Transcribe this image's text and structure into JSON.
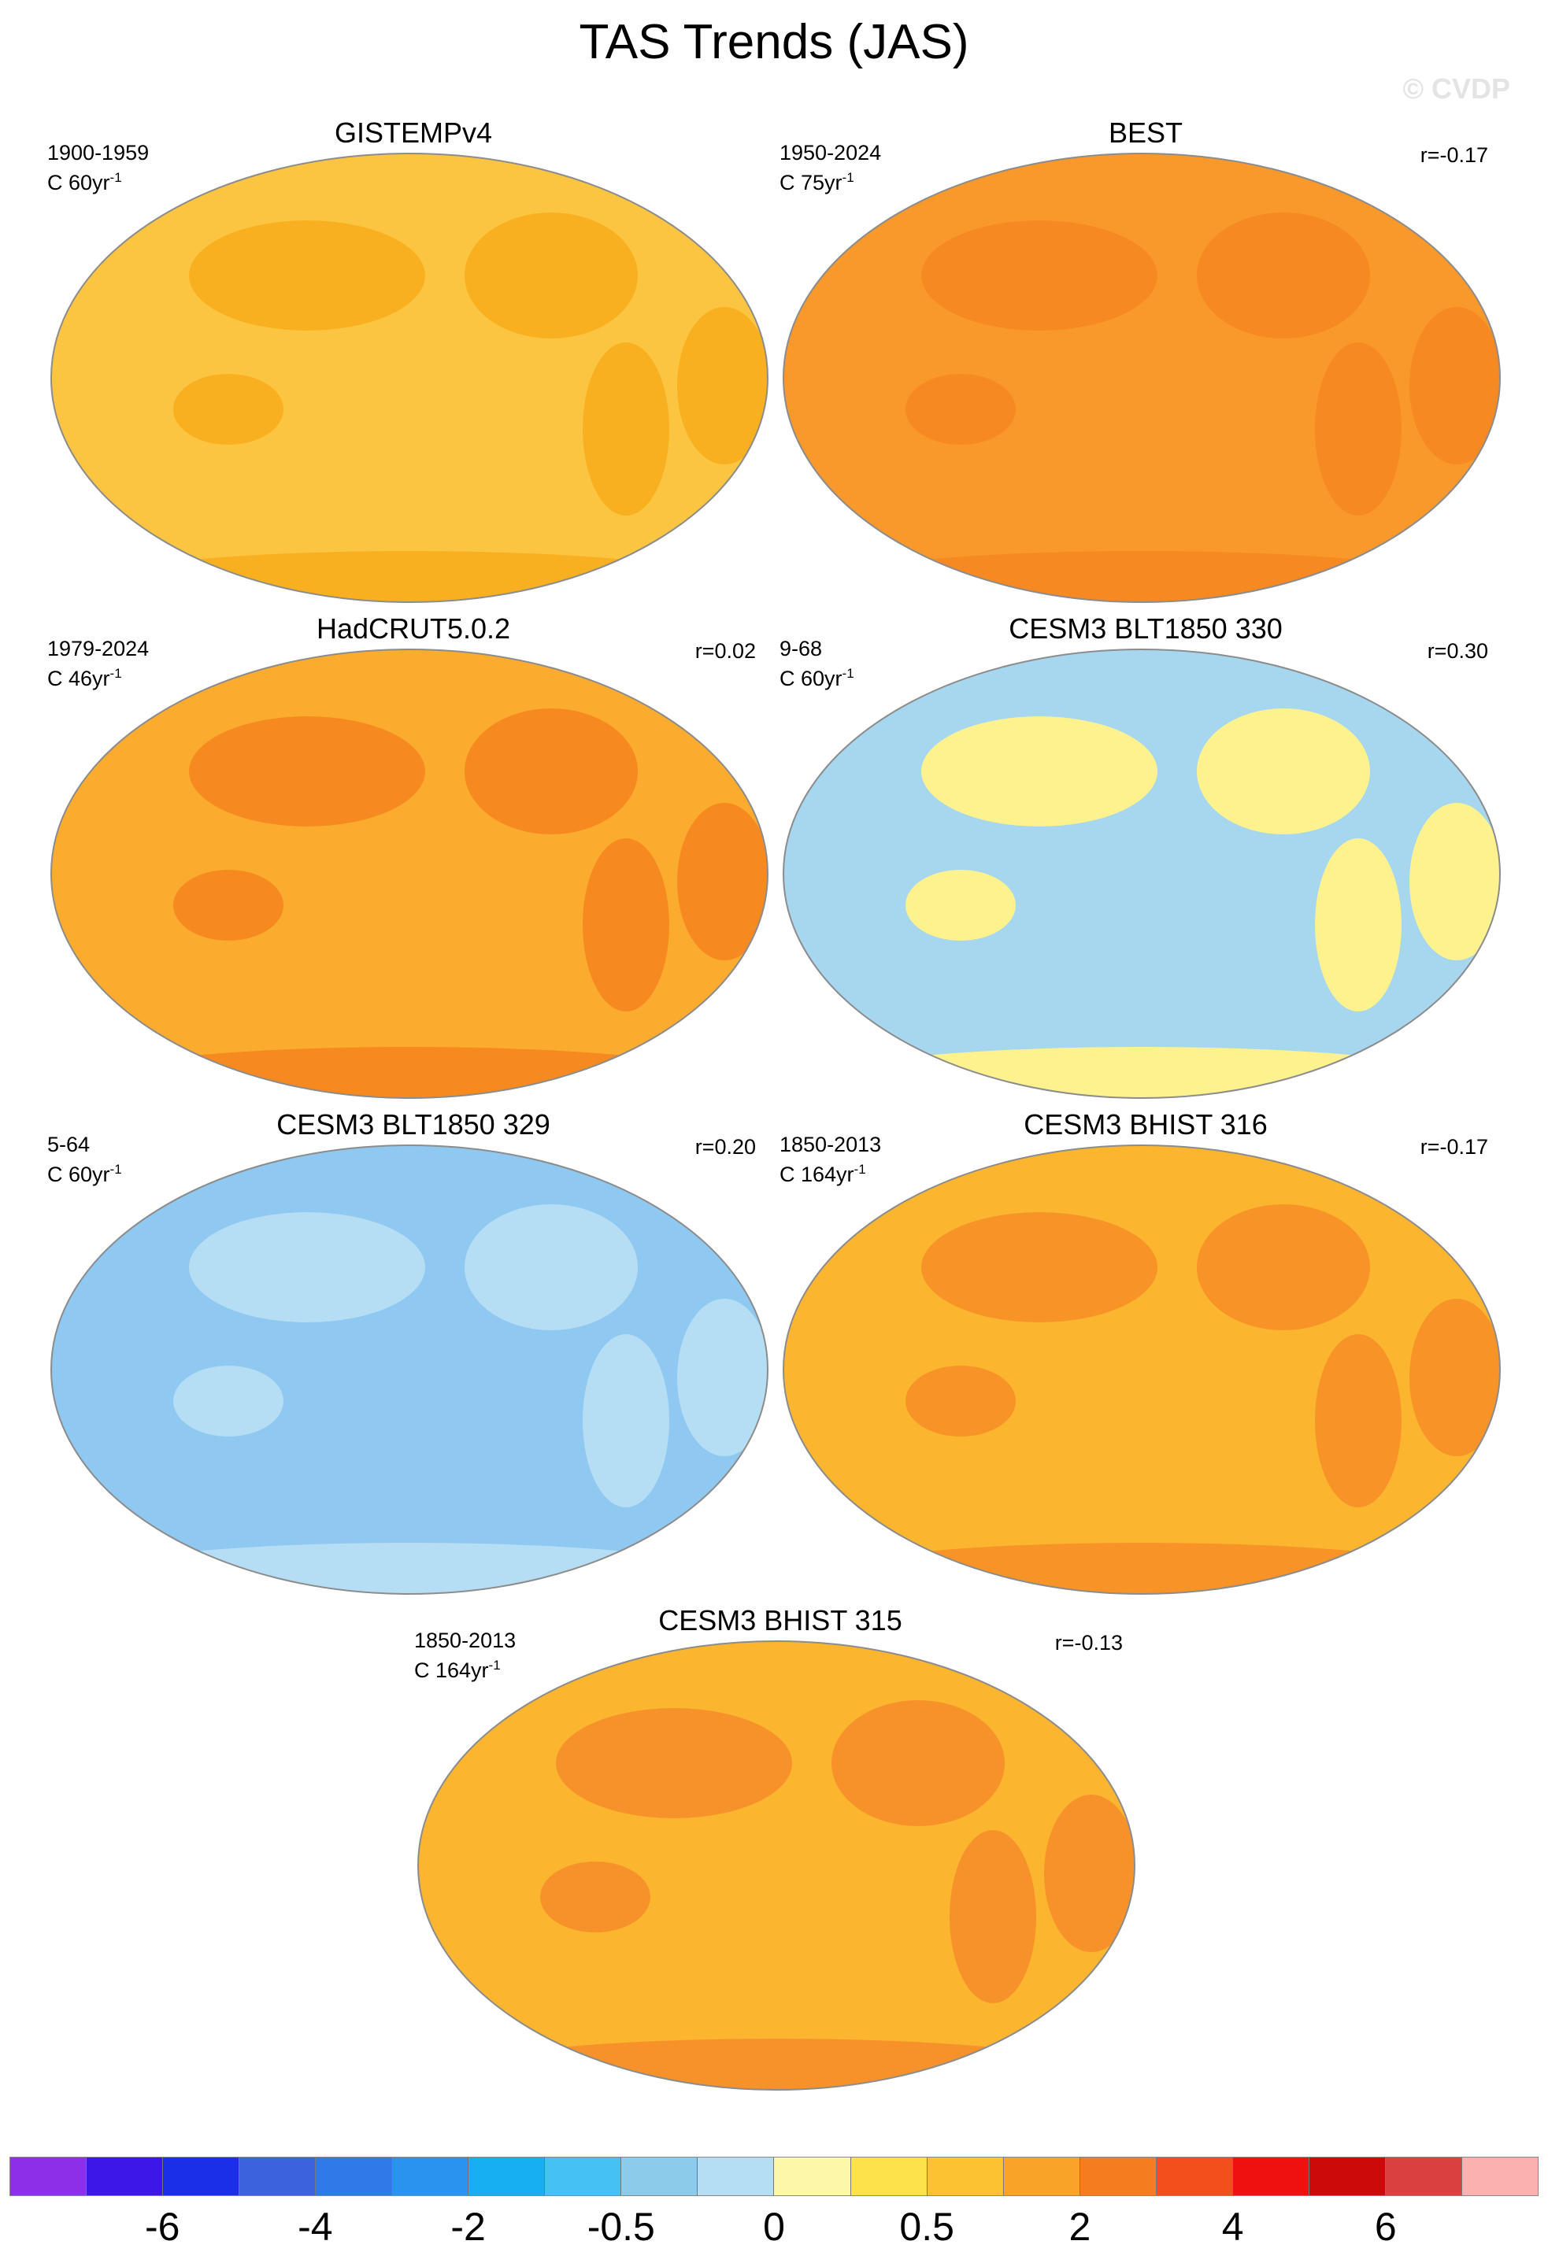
{
  "figure": {
    "title": "TAS Trends (JAS)",
    "watermark": "© CVDP"
  },
  "panels": [
    {
      "title": "GISTEMPv4",
      "period": "1900-1959",
      "units_prefix": "C 60yr",
      "units_sup": "-1",
      "corr": "",
      "base": "#fcc541",
      "land": "#f9b020"
    },
    {
      "title": "BEST",
      "period": "1950-2024",
      "units_prefix": "C 75yr",
      "units_sup": "-1",
      "corr": "r=-0.17",
      "base": "#f9982b",
      "land": "#f68922"
    },
    {
      "title": "HadCRUT5.0.2",
      "period": "1979-2024",
      "units_prefix": "C 46yr",
      "units_sup": "-1",
      "corr": "r=0.02",
      "base": "#fbac2e",
      "land": "#f68a20"
    },
    {
      "title": "CESM3 BLT1850 330",
      "period": "9-68",
      "units_prefix": "C 60yr",
      "units_sup": "-1",
      "corr": "r=0.30",
      "base": "#a7d6ef",
      "land": "#fdf28e"
    },
    {
      "title": "CESM3 BLT1850 329",
      "period": "5-64",
      "units_prefix": "C 60yr",
      "units_sup": "-1",
      "corr": "r=0.20",
      "base": "#8fc8f0",
      "land": "#b5def4"
    },
    {
      "title": "CESM3 BHIST 316",
      "period": "1850-2013",
      "units_prefix": "C 164yr",
      "units_sup": "-1",
      "corr": "r=-0.17",
      "base": "#fbb52f",
      "land": "#f89327"
    },
    {
      "title": "CESM3 BHIST 315",
      "period": "1850-2013",
      "units_prefix": "C 164yr",
      "units_sup": "-1",
      "corr": "r=-0.13",
      "base": "#fbb52f",
      "land": "#f7922a"
    }
  ],
  "colorbar": {
    "colors": [
      "#8b2fe8",
      "#3d17e8",
      "#1b2ee8",
      "#3d62dd",
      "#2f7ae6",
      "#2a93f0",
      "#17afef",
      "#45c1f3",
      "#8ccbe9",
      "#b5def4",
      "#fdf7a8",
      "#fde24b",
      "#fbc231",
      "#f9a427",
      "#f67d1f",
      "#f14f1b",
      "#ef1010",
      "#cc0a0a",
      "#d9403f",
      "#fcb1b1"
    ],
    "tick_labels": [
      "-6",
      "-4",
      "-2",
      "-0.5",
      "0",
      "0.5",
      "2",
      "4",
      "6"
    ]
  }
}
